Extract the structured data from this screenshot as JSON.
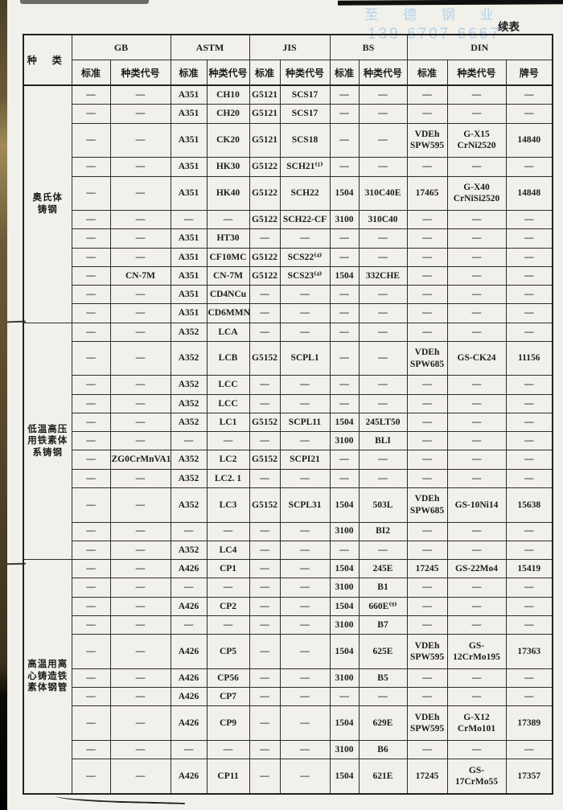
{
  "page": {
    "continued_label": "续表",
    "watermark": {
      "line1": "至 德 钢 业",
      "line2": "139 6707 6667"
    },
    "colors": {
      "paper": "#f2f0ea",
      "ink": "#1c1c1c",
      "watermark_blue": "#a7cdec"
    }
  },
  "table": {
    "category_header": "种  类",
    "column_groups": [
      {
        "label": "GB",
        "subs": [
          "标准",
          "种类代号"
        ]
      },
      {
        "label": "ASTM",
        "subs": [
          "标准",
          "种类代号"
        ]
      },
      {
        "label": "JIS",
        "subs": [
          "标准",
          "种类代号"
        ]
      },
      {
        "label": "BS",
        "subs": [
          "标准",
          "种类代号"
        ]
      },
      {
        "label": "DIN",
        "subs": [
          "标准",
          "种类代号",
          "牌号"
        ]
      }
    ],
    "groups": [
      {
        "category": "奥氏体\n铸钢",
        "rows": [
          [
            "—",
            "—",
            "A351",
            "CH10",
            "G5121",
            "SCS17",
            "—",
            "—",
            "—",
            "—",
            "—"
          ],
          [
            "—",
            "—",
            "A351",
            "CH20",
            "G5121",
            "SCS17",
            "—",
            "—",
            "—",
            "—",
            "—"
          ],
          [
            "—",
            "—",
            "A351",
            "CK20",
            "G5121",
            "SCS18",
            "—",
            "—",
            "VDEh\nSPW595",
            "G-X15\nCrNi2520",
            "14840"
          ],
          [
            "—",
            "—",
            "A351",
            "HK30",
            "G5122",
            "SCH21⁽¹⁾",
            "—",
            "—",
            "—",
            "—",
            "—"
          ],
          [
            "—",
            "—",
            "A351",
            "HK40",
            "G5122",
            "SCH22",
            "1504",
            "310C40E",
            "17465",
            "G-X40\nCrNiSi2520",
            "14848"
          ],
          [
            "—",
            "—",
            "—",
            "—",
            "G5122",
            "SCH22-CF",
            "3100",
            "310C40",
            "—",
            "—",
            "—"
          ],
          [
            "—",
            "—",
            "A351",
            "HT30",
            "—",
            "—",
            "—",
            "—",
            "—",
            "—",
            "—"
          ],
          [
            "—",
            "—",
            "A351",
            "CF10MC",
            "G5122",
            "SCS22⁽⁴⁾",
            "—",
            "—",
            "—",
            "—",
            "—"
          ],
          [
            "—",
            "CN-7M",
            "A351",
            "CN-7M",
            "G5122",
            "SCS23⁽⁴⁾",
            "1504",
            "332CHE",
            "—",
            "—",
            "—"
          ],
          [
            "—",
            "—",
            "A351",
            "CD4NCu",
            "—",
            "—",
            "—",
            "—",
            "—",
            "—",
            "—"
          ],
          [
            "—",
            "—",
            "A351",
            "CD6MMN",
            "—",
            "—",
            "—",
            "—",
            "—",
            "—",
            "—"
          ]
        ]
      },
      {
        "category": "低温高压\n用铁素体\n系铸钢",
        "rows": [
          [
            "—",
            "—",
            "A352",
            "LCA",
            "—",
            "—",
            "—",
            "—",
            "—",
            "—",
            "—"
          ],
          [
            "—",
            "—",
            "A352",
            "LCB",
            "G5152",
            "SCPL1",
            "—",
            "—",
            "VDEh\nSPW685",
            "GS-CK24",
            "11156"
          ],
          [
            "—",
            "—",
            "A352",
            "LCC",
            "—",
            "—",
            "—",
            "—",
            "—",
            "—",
            "—"
          ],
          [
            "—",
            "—",
            "A352",
            "LCC",
            "—",
            "—",
            "—",
            "—",
            "—",
            "—",
            "—"
          ],
          [
            "—",
            "—",
            "A352",
            "LC1",
            "G5152",
            "SCPL11",
            "1504",
            "245LT50",
            "—",
            "—",
            "—"
          ],
          [
            "—",
            "—",
            "—",
            "—",
            "—",
            "—",
            "3100",
            "BLI",
            "—",
            "—",
            "—"
          ],
          [
            "—",
            "ZG0CrMnVA1",
            "A352",
            "LC2",
            "G5152",
            "SCPI21",
            "—",
            "—",
            "—",
            "—",
            "—"
          ],
          [
            "—",
            "—",
            "A352",
            "LC2. 1",
            "—",
            "—",
            "—",
            "—",
            "—",
            "—",
            "—"
          ],
          [
            "—",
            "—",
            "A352",
            "LC3",
            "G5152",
            "SCPL31",
            "1504",
            "503L",
            "VDEh\nSPW685",
            "GS-10Ni14",
            "15638"
          ],
          [
            "—",
            "—",
            "—",
            "—",
            "—",
            "—",
            "3100",
            "BI2",
            "—",
            "—",
            "—"
          ],
          [
            "—",
            "—",
            "A352",
            "LC4",
            "—",
            "—",
            "—",
            "—",
            "—",
            "—",
            "—"
          ]
        ]
      },
      {
        "category": "高温用离\n心铸造铁\n素体钢管",
        "rows": [
          [
            "—",
            "—",
            "A426",
            "CP1",
            "—",
            "—",
            "1504",
            "245E",
            "17245",
            "GS-22Mo4",
            "15419"
          ],
          [
            "—",
            "—",
            "—",
            "—",
            "—",
            "—",
            "3100",
            "B1",
            "—",
            "—",
            "—"
          ],
          [
            "—",
            "—",
            "A426",
            "CP2",
            "—",
            "—",
            "1504",
            "660E⁽⁹⁾",
            "—",
            "—",
            "—"
          ],
          [
            "—",
            "—",
            "—",
            "—",
            "—",
            "—",
            "3100",
            "B7",
            "—",
            "—",
            "—"
          ],
          [
            "—",
            "—",
            "A426",
            "CP5",
            "—",
            "—",
            "1504",
            "625E",
            "VDEh\nSPW595",
            "GS-\n12CrMo195",
            "17363"
          ],
          [
            "—",
            "—",
            "A426",
            "CP56",
            "—",
            "—",
            "3100",
            "B5",
            "—",
            "—",
            "—"
          ],
          [
            "—",
            "—",
            "A426",
            "CP7",
            "—",
            "—",
            "—",
            "—",
            "—",
            "—",
            "—"
          ],
          [
            "—",
            "—",
            "A426",
            "CP9",
            "—",
            "—",
            "1504",
            "629E",
            "VDEh\nSPW595",
            "G-X12\nCrMo101",
            "17389"
          ],
          [
            "—",
            "—",
            "—",
            "—",
            "—",
            "—",
            "3100",
            "B6",
            "—",
            "—",
            "—"
          ],
          [
            "—",
            "—",
            "A426",
            "CP11",
            "—",
            "—",
            "1504",
            "621E",
            "17245",
            "GS-\n17CrMo55",
            "17357"
          ]
        ]
      }
    ]
  }
}
